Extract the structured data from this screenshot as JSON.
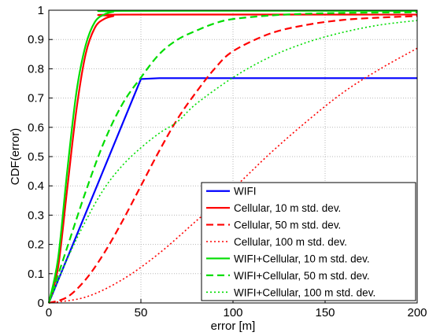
{
  "chart_data": {
    "type": "line",
    "title": "",
    "xlabel": "error [m]",
    "ylabel": "CDF(error)",
    "xlim": [
      0,
      200
    ],
    "ylim": [
      0,
      1
    ],
    "grid": true,
    "legend_position": "bottom-right",
    "x_ticks": [
      "0",
      "50",
      "100",
      "150",
      "200"
    ],
    "y_ticks": [
      "0",
      "0.1",
      "0.2",
      "0.3",
      "0.4",
      "0.5",
      "0.6",
      "0.7",
      "0.8",
      "0.9",
      "1"
    ],
    "series": [
      {
        "name": "WIFI",
        "color": "#0000ff",
        "style": "solid",
        "x": [
          0,
          50,
          60,
          200
        ],
        "y": [
          0,
          0.765,
          0.768,
          0.768
        ]
      },
      {
        "name": "Cellular, 10 m std. dev.",
        "color": "#ff0000",
        "style": "solid",
        "x": [
          0,
          5,
          10,
          15,
          20,
          25,
          30,
          35,
          40,
          200
        ],
        "y": [
          0,
          0.12,
          0.39,
          0.66,
          0.85,
          0.94,
          0.97,
          0.98,
          0.985,
          0.985
        ]
      },
      {
        "name": "Cellular, 50 m std. dev.",
        "color": "#ff0000",
        "style": "dashed",
        "x": [
          0,
          10,
          20,
          30,
          40,
          50,
          60,
          70,
          80,
          90,
          100,
          120,
          140,
          160,
          180,
          200
        ],
        "y": [
          0,
          0.02,
          0.08,
          0.17,
          0.28,
          0.4,
          0.52,
          0.63,
          0.72,
          0.8,
          0.86,
          0.92,
          0.95,
          0.967,
          0.975,
          0.98
        ]
      },
      {
        "name": "Cellular, 100 m std. dev.",
        "color": "#ff0000",
        "style": "dotted",
        "x": [
          0,
          20,
          40,
          60,
          80,
          100,
          120,
          140,
          160,
          180,
          200
        ],
        "y": [
          0,
          0.02,
          0.08,
          0.17,
          0.28,
          0.39,
          0.51,
          0.62,
          0.72,
          0.8,
          0.87
        ]
      },
      {
        "name": "WIFI+Cellular, 10 m std. dev.",
        "color": "#00dd00",
        "style": "solid",
        "x": [
          0,
          5,
          10,
          15,
          20,
          25,
          30,
          35,
          40,
          200
        ],
        "y": [
          0,
          0.15,
          0.45,
          0.72,
          0.88,
          0.96,
          0.985,
          0.995,
          0.998,
          0.998
        ]
      },
      {
        "name": "WIFI+Cellular, 50 m std. dev.",
        "color": "#00dd00",
        "style": "dashed",
        "x": [
          0,
          10,
          20,
          30,
          40,
          50,
          60,
          70,
          80,
          90,
          100,
          120,
          140,
          160,
          180,
          200
        ],
        "y": [
          0,
          0.19,
          0.38,
          0.55,
          0.68,
          0.77,
          0.85,
          0.9,
          0.93,
          0.955,
          0.97,
          0.982,
          0.988,
          0.991,
          0.992,
          0.993
        ]
      },
      {
        "name": "WIFI+Cellular, 100 m std. dev.",
        "color": "#00dd00",
        "style": "dotted",
        "x": [
          0,
          10,
          20,
          30,
          40,
          50,
          60,
          70,
          80,
          100,
          120,
          140,
          160,
          180,
          200
        ],
        "y": [
          0,
          0.15,
          0.28,
          0.39,
          0.47,
          0.53,
          0.58,
          0.62,
          0.68,
          0.77,
          0.84,
          0.89,
          0.925,
          0.95,
          0.965
        ]
      }
    ]
  }
}
